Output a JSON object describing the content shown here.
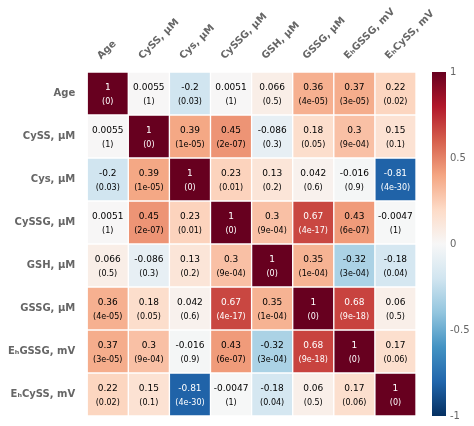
{
  "chart_data": {
    "type": "heatmap",
    "x_categories": [
      "Age",
      "CySS, μM",
      "Cys, μM",
      "CySSG, μM",
      "GSH, μM",
      "GSSG, μM",
      "EₕGSSG, mV",
      "EₕCySS, mV"
    ],
    "y_categories": [
      "Age",
      "CySS, μM",
      "Cys, μM",
      "CySSG, μM",
      "GSH, μM",
      "GSSG, μM",
      "EₕGSSG, mV",
      "EₕCySS, mV"
    ],
    "values": [
      [
        1,
        0.0055,
        -0.2,
        0.0051,
        0.066,
        0.36,
        0.37,
        0.22
      ],
      [
        0.0055,
        1,
        0.39,
        0.45,
        -0.086,
        0.18,
        0.3,
        0.15
      ],
      [
        -0.2,
        0.39,
        1,
        0.23,
        0.13,
        0.042,
        -0.016,
        -0.81
      ],
      [
        0.0051,
        0.45,
        0.23,
        1,
        0.3,
        0.67,
        0.43,
        -0.0047
      ],
      [
        0.066,
        -0.086,
        0.13,
        0.3,
        1,
        0.35,
        -0.32,
        -0.18
      ],
      [
        0.36,
        0.18,
        0.042,
        0.67,
        0.35,
        1,
        0.68,
        0.06
      ],
      [
        0.37,
        0.3,
        -0.016,
        0.43,
        -0.32,
        0.68,
        1,
        0.17
      ],
      [
        0.22,
        0.15,
        -0.81,
        -0.0047,
        -0.18,
        0.06,
        0.17,
        1
      ]
    ],
    "p_value_labels": [
      [
        "(0)",
        "(1)",
        "(0.03)",
        "(1)",
        "(0.5)",
        "(4e-05)",
        "(3e-05)",
        "(0.02)"
      ],
      [
        "(1)",
        "(0)",
        "(1e-05)",
        "(2e-07)",
        "(0.3)",
        "(0.05)",
        "(9e-04)",
        "(0.1)"
      ],
      [
        "(0.03)",
        "(1e-05)",
        "(0)",
        "(0.01)",
        "(0.2)",
        "(0.6)",
        "(0.9)",
        "(4e-30)"
      ],
      [
        "(1)",
        "(2e-07)",
        "(0.01)",
        "(0)",
        "(9e-04)",
        "(4e-17)",
        "(6e-07)",
        "(1)"
      ],
      [
        "(0.5)",
        "(0.3)",
        "(0.2)",
        "(9e-04)",
        "(0)",
        "(1e-04)",
        "(3e-04)",
        "(0.04)"
      ],
      [
        "(4e-05)",
        "(0.05)",
        "(0.6)",
        "(4e-17)",
        "(1e-04)",
        "(0)",
        "(9e-18)",
        "(0.5)"
      ],
      [
        "(3e-05)",
        "(9e-04)",
        "(0.9)",
        "(6e-07)",
        "(3e-04)",
        "(9e-18)",
        "(0)",
        "(0.06)"
      ],
      [
        "(0.02)",
        "(0.1)",
        "(4e-30)",
        "(1)",
        "(0.04)",
        "(0.5)",
        "(0.06)",
        "(0)"
      ]
    ],
    "data_labels": true,
    "grid": false,
    "colorbar_range": [
      -1,
      1
    ],
    "colorbar_ticks": [
      -1,
      -0.5,
      0,
      0.5,
      1
    ]
  }
}
